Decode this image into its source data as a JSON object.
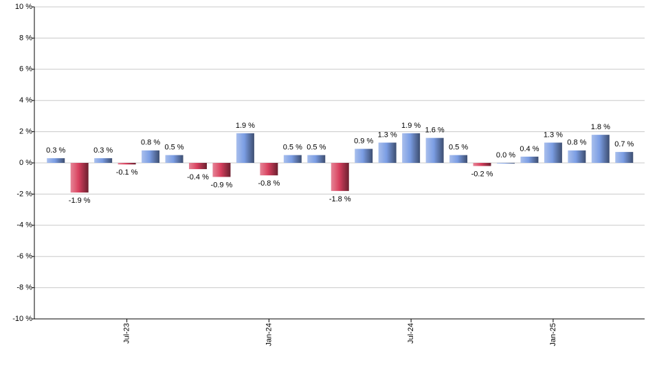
{
  "chart_data": {
    "type": "bar",
    "categories": [
      null,
      null,
      null,
      "Jul-23",
      null,
      null,
      null,
      null,
      null,
      "Jan-24",
      null,
      null,
      null,
      null,
      null,
      "Jul-24",
      null,
      null,
      null,
      null,
      null,
      "Jan-25",
      null,
      null,
      null
    ],
    "values": [
      0.3,
      -1.9,
      0.3,
      -0.1,
      0.8,
      0.5,
      -0.4,
      -0.9,
      1.9,
      -0.8,
      0.5,
      0.5,
      -1.8,
      0.9,
      1.3,
      1.9,
      1.6,
      0.5,
      -0.2,
      0.0,
      0.4,
      1.3,
      0.8,
      1.8,
      0.7
    ],
    "value_labels": [
      "0.3 %",
      "-1.9 %",
      "0.3 %",
      "-0.1 %",
      "0.8 %",
      "0.5 %",
      "-0.4 %",
      "-0.9 %",
      "1.9 %",
      "-0.8 %",
      "0.5 %",
      "0.5 %",
      "-1.8 %",
      "0.9 %",
      "1.3 %",
      "1.9 %",
      "1.6 %",
      "0.5 %",
      "-0.2 %",
      "0.0 %",
      "0.4 %",
      "1.3 %",
      "0.8 %",
      "1.8 %",
      "0.7 %"
    ],
    "color": "#7b9de3",
    "negative_color": "#d8405f",
    "ylim": [
      -10,
      10
    ],
    "yticks": [
      {
        "value": -10,
        "label": "-10 %"
      },
      {
        "value": -8,
        "label": "-8 %"
      },
      {
        "value": -6,
        "label": "-6 %"
      },
      {
        "value": -4,
        "label": "-4 %"
      },
      {
        "value": -2,
        "label": "-2 %"
      },
      {
        "value": 0,
        "label": "0 %"
      },
      {
        "value": 2,
        "label": "2 %"
      },
      {
        "value": 4,
        "label": "4 %"
      },
      {
        "value": 6,
        "label": "6 %"
      },
      {
        "value": 8,
        "label": "8 %"
      },
      {
        "value": 10,
        "label": "10 %"
      }
    ],
    "grid": true
  }
}
